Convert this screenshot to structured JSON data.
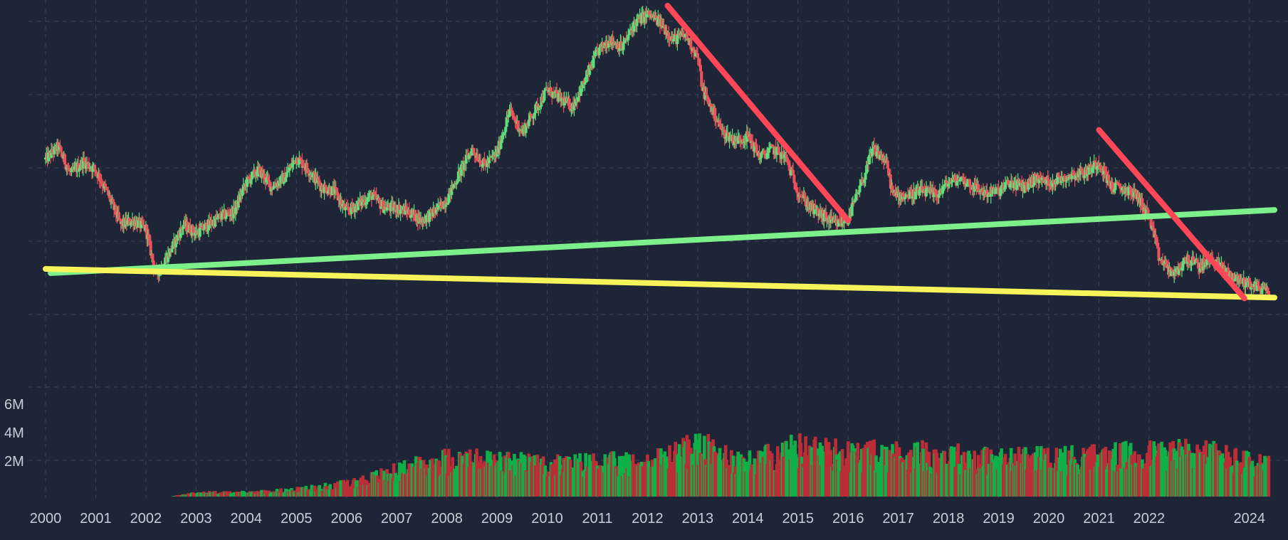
{
  "chart_data": {
    "type": "candlestick",
    "title": "",
    "xlabel": "",
    "ylabel": "",
    "x_ticks": [
      "2000",
      "2001",
      "2002",
      "2003",
      "2004",
      "2005",
      "2006",
      "2007",
      "2008",
      "2009",
      "2010",
      "2011",
      "2012",
      "2013",
      "2014",
      "2015",
      "2016",
      "2017",
      "2018",
      "2019",
      "2020",
      "2021",
      "2022",
      "2024"
    ],
    "volume_ticks": [
      "6M",
      "4M",
      "2M"
    ],
    "volume_tick_values": [
      6000000,
      4000000,
      2000000
    ],
    "grid": true,
    "colors": {
      "background": "#1d2536",
      "grid": "#3b4356",
      "up": "#5ce07a",
      "down": "#f0525c",
      "volume_up": "#10b048",
      "volume_down": "#bb2e37",
      "trendline_green": "#7df08b",
      "trendline_red": "#ff4757",
      "trendline_yellow": "#f7f35a",
      "text": "#c9cdd6"
    },
    "price_path": [
      [
        2000.0,
        0.635
      ],
      [
        2000.25,
        0.665
      ],
      [
        2000.5,
        0.6
      ],
      [
        2000.75,
        0.63
      ],
      [
        2001.0,
        0.61
      ],
      [
        2001.25,
        0.55
      ],
      [
        2001.5,
        0.48
      ],
      [
        2001.75,
        0.49
      ],
      [
        2002.0,
        0.47
      ],
      [
        2002.2,
        0.36
      ],
      [
        2002.5,
        0.42
      ],
      [
        2002.75,
        0.48
      ],
      [
        2003.0,
        0.46
      ],
      [
        2003.5,
        0.5
      ],
      [
        2003.75,
        0.51
      ],
      [
        2004.0,
        0.58
      ],
      [
        2004.25,
        0.61
      ],
      [
        2004.5,
        0.57
      ],
      [
        2004.75,
        0.59
      ],
      [
        2005.0,
        0.64
      ],
      [
        2005.25,
        0.61
      ],
      [
        2005.5,
        0.57
      ],
      [
        2005.75,
        0.56
      ],
      [
        2006.0,
        0.51
      ],
      [
        2006.25,
        0.53
      ],
      [
        2006.5,
        0.55
      ],
      [
        2006.75,
        0.52
      ],
      [
        2007.0,
        0.52
      ],
      [
        2007.25,
        0.51
      ],
      [
        2007.5,
        0.49
      ],
      [
        2007.75,
        0.51
      ],
      [
        2008.0,
        0.54
      ],
      [
        2008.2,
        0.59
      ],
      [
        2008.5,
        0.66
      ],
      [
        2008.75,
        0.62
      ],
      [
        2009.0,
        0.65
      ],
      [
        2009.25,
        0.75
      ],
      [
        2009.5,
        0.7
      ],
      [
        2009.75,
        0.75
      ],
      [
        2010.0,
        0.8
      ],
      [
        2010.25,
        0.78
      ],
      [
        2010.5,
        0.76
      ],
      [
        2010.75,
        0.82
      ],
      [
        2011.0,
        0.89
      ],
      [
        2011.25,
        0.92
      ],
      [
        2011.5,
        0.9
      ],
      [
        2011.75,
        0.96
      ],
      [
        2012.0,
        0.98
      ],
      [
        2012.25,
        0.96
      ],
      [
        2012.5,
        0.92
      ],
      [
        2012.75,
        0.93
      ],
      [
        2013.0,
        0.88
      ],
      [
        2013.1,
        0.8
      ],
      [
        2013.5,
        0.7
      ],
      [
        2013.75,
        0.68
      ],
      [
        2014.0,
        0.69
      ],
      [
        2014.25,
        0.64
      ],
      [
        2014.5,
        0.66
      ],
      [
        2014.75,
        0.64
      ],
      [
        2015.0,
        0.56
      ],
      [
        2015.25,
        0.52
      ],
      [
        2015.5,
        0.5
      ],
      [
        2015.75,
        0.48
      ],
      [
        2016.0,
        0.495
      ],
      [
        2016.25,
        0.57
      ],
      [
        2016.5,
        0.66
      ],
      [
        2016.75,
        0.63
      ],
      [
        2016.9,
        0.55
      ],
      [
        2017.2,
        0.55
      ],
      [
        2017.5,
        0.56
      ],
      [
        2017.75,
        0.55
      ],
      [
        2018.0,
        0.58
      ],
      [
        2018.25,
        0.59
      ],
      [
        2018.5,
        0.57
      ],
      [
        2018.75,
        0.555
      ],
      [
        2019.0,
        0.56
      ],
      [
        2019.25,
        0.58
      ],
      [
        2019.5,
        0.57
      ],
      [
        2019.75,
        0.59
      ],
      [
        2020.0,
        0.58
      ],
      [
        2020.25,
        0.59
      ],
      [
        2020.5,
        0.6
      ],
      [
        2020.75,
        0.605
      ],
      [
        2021.0,
        0.63
      ],
      [
        2021.25,
        0.57
      ],
      [
        2021.5,
        0.565
      ],
      [
        2021.75,
        0.55
      ],
      [
        2022.0,
        0.5
      ],
      [
        2022.2,
        0.4
      ],
      [
        2022.5,
        0.36
      ],
      [
        2022.75,
        0.4
      ],
      [
        2023.0,
        0.38
      ],
      [
        2023.25,
        0.4
      ],
      [
        2023.5,
        0.37
      ],
      [
        2023.75,
        0.35
      ],
      [
        2024.0,
        0.34
      ],
      [
        2024.4,
        0.32
      ]
    ],
    "volume_path": [
      [
        2002.5,
        0.0
      ],
      [
        2003.0,
        0.3
      ],
      [
        2004.0,
        0.3
      ],
      [
        2005.0,
        0.5
      ],
      [
        2006.0,
        0.9
      ],
      [
        2007.0,
        1.8
      ],
      [
        2008.0,
        2.6
      ],
      [
        2009.0,
        2.5
      ],
      [
        2010.0,
        2.2
      ],
      [
        2011.0,
        2.4
      ],
      [
        2012.0,
        2.3
      ],
      [
        2013.0,
        3.5
      ],
      [
        2014.0,
        2.4
      ],
      [
        2015.0,
        3.4
      ],
      [
        2016.0,
        3.0
      ],
      [
        2017.0,
        3.0
      ],
      [
        2018.0,
        2.9
      ],
      [
        2019.0,
        2.6
      ],
      [
        2020.0,
        2.7
      ],
      [
        2021.0,
        2.8
      ],
      [
        2022.0,
        3.0
      ],
      [
        2023.0,
        3.2
      ],
      [
        2024.0,
        2.4
      ]
    ],
    "trendlines": [
      {
        "color": "green",
        "points": [
          [
            2000.1,
            0.365
          ],
          [
            2024.5,
            0.515
          ]
        ]
      },
      {
        "color": "yellow",
        "points": [
          [
            2000.0,
            0.375
          ],
          [
            2024.5,
            0.307
          ]
        ]
      },
      {
        "color": "red",
        "points": [
          [
            2012.4,
            1.0
          ],
          [
            2016.0,
            0.49
          ]
        ]
      },
      {
        "color": "red",
        "points": [
          [
            2021.0,
            0.705
          ],
          [
            2023.9,
            0.305
          ]
        ]
      }
    ]
  }
}
